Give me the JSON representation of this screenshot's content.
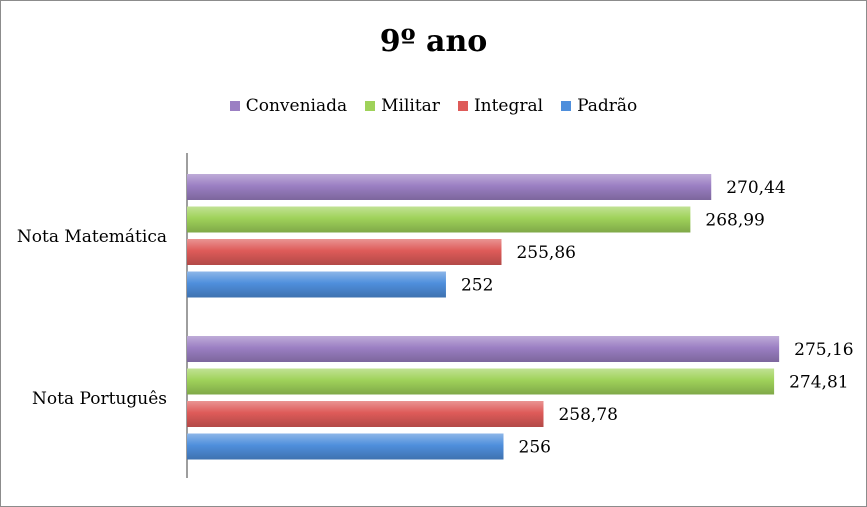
{
  "chart_data": {
    "type": "bar",
    "orientation": "horizontal",
    "title": "9º ano",
    "categories": [
      "Nota Matemática",
      "Nota Português"
    ],
    "series": [
      {
        "name": "Conveniada",
        "color": "#9b7fc3",
        "values": [
          270.44,
          275.16
        ],
        "labels": [
          "270,44",
          "275,16"
        ]
      },
      {
        "name": "Militar",
        "color": "#9fd25a",
        "values": [
          268.99,
          274.81
        ],
        "labels": [
          "268,99",
          "274,81"
        ]
      },
      {
        "name": "Integral",
        "color": "#de5b59",
        "values": [
          255.86,
          258.78
        ],
        "labels": [
          "255,86",
          "258,78"
        ]
      },
      {
        "name": "Padrão",
        "color": "#4f8fdc",
        "values": [
          252,
          256
        ],
        "labels": [
          "252",
          "256"
        ]
      }
    ],
    "xlim": [
      234,
      278
    ],
    "legend_position": "top",
    "grid": false
  }
}
